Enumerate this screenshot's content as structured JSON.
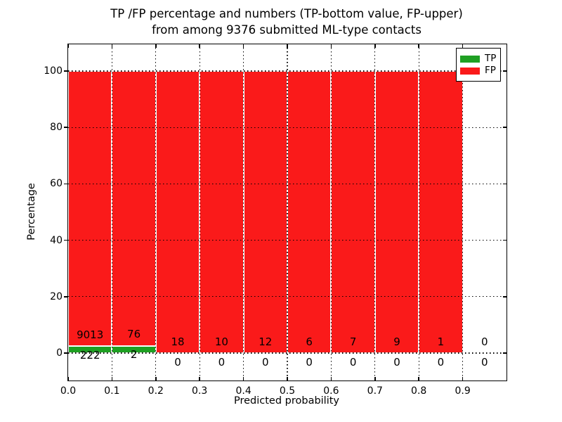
{
  "title": {
    "line1": "TP /FP percentage and numbers (TP-bottom value, FP-upper)",
    "line2": "from among 9376 submitted ML-type contacts"
  },
  "y_axis": {
    "label": "Percentage",
    "tick_labels": [
      "0",
      "20",
      "40",
      "60",
      "80",
      "100"
    ],
    "tick_values": [
      0,
      20,
      40,
      60,
      80,
      100
    ]
  },
  "x_axis": {
    "label": "Predicted probability",
    "tick_labels": [
      "0.0",
      "0.1",
      "0.2",
      "0.3",
      "0.4",
      "0.5",
      "0.6",
      "0.7",
      "0.8",
      "0.9"
    ],
    "tick_values": [
      0,
      0.1,
      0.2,
      0.3,
      0.4,
      0.5,
      0.6,
      0.7,
      0.8,
      0.9
    ]
  },
  "legend": {
    "position": "upper right",
    "items": [
      {
        "label": "TP",
        "color": "#1fa023"
      },
      {
        "label": "FP",
        "color": "#fa1a1a"
      }
    ]
  },
  "chart_data": {
    "type": "bar",
    "subtype": "stacked-normalized-percentage",
    "title": "TP /FP percentage and numbers (TP-bottom value, FP-upper) from among 9376 submitted ML-type contacts",
    "xlabel": "Predicted probability",
    "ylabel": "Percentage",
    "categories": [
      "0.0-0.1",
      "0.1-0.2",
      "0.2-0.3",
      "0.3-0.4",
      "0.4-0.5",
      "0.5-0.6",
      "0.6-0.7",
      "0.7-0.8",
      "0.8-0.9",
      "0.9-1.0"
    ],
    "series": [
      {
        "name": "TP",
        "color": "#1fa023",
        "counts": [
          222,
          2,
          0,
          0,
          0,
          0,
          0,
          0,
          0,
          0
        ]
      },
      {
        "name": "FP",
        "color": "#fa1a1a",
        "counts": [
          9013,
          76,
          18,
          10,
          12,
          6,
          7,
          9,
          1,
          0
        ]
      }
    ],
    "bar_value_labels": {
      "upper_row": "FP counts",
      "lower_row": "TP counts"
    },
    "total_submitted": 9376,
    "xlim": [
      0,
      1.0
    ],
    "ylim": [
      -10,
      110
    ],
    "yticks": [
      0,
      20,
      40,
      60,
      80,
      100
    ],
    "xticks": [
      0,
      0.1,
      0.2,
      0.3,
      0.4,
      0.5,
      0.6,
      0.7,
      0.8,
      0.9
    ],
    "grid": "dotted black, both axes",
    "legend_position": "upper right"
  }
}
